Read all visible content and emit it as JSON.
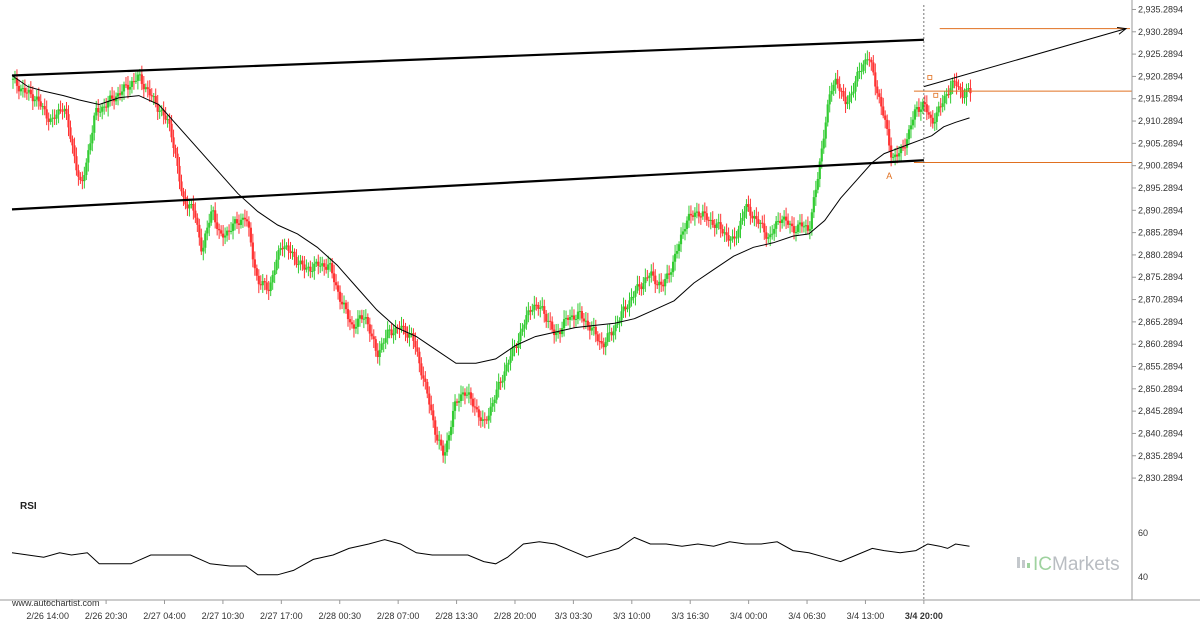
{
  "chart_data": {
    "type": "candlestick",
    "title": "",
    "ylim": [
      2828.2894,
      2936.2894
    ],
    "y_ticks": [
      "2,935.2894",
      "2,930.2894",
      "2,925.2894",
      "2,920.2894",
      "2,915.2894",
      "2,910.2894",
      "2,905.2894",
      "2,900.2894",
      "2,895.2894",
      "2,890.2894",
      "2,885.2894",
      "2,880.2894",
      "2,875.2894",
      "2,870.2894",
      "2,865.2894",
      "2,860.2894",
      "2,855.2894",
      "2,850.2894",
      "2,845.2894",
      "2,840.2894",
      "2,835.2894",
      "2,830.2894"
    ],
    "x_ticks": [
      "2/26 14:00",
      "2/26 20:30",
      "2/27 04:00",
      "2/27 10:30",
      "2/27 17:00",
      "2/28 00:30",
      "2/28 07:00",
      "2/28 13:30",
      "2/28 20:00",
      "3/3 03:30",
      "3/3 10:00",
      "3/3 16:30",
      "3/4 00:00",
      "3/4 06:30",
      "3/4 13:00",
      "3/4 20:00"
    ],
    "price_path": [
      [
        0,
        2919.5
      ],
      [
        6,
        2917
      ],
      [
        12,
        2915.5
      ],
      [
        20,
        2910
      ],
      [
        26,
        2914
      ],
      [
        35,
        2895
      ],
      [
        42,
        2912
      ],
      [
        50,
        2915
      ],
      [
        58,
        2918
      ],
      [
        64,
        2920.2
      ],
      [
        70,
        2916
      ],
      [
        80,
        2909
      ],
      [
        86,
        2893
      ],
      [
        92,
        2890
      ],
      [
        96,
        2881
      ],
      [
        101,
        2891
      ],
      [
        105,
        2884
      ],
      [
        112,
        2887
      ],
      [
        118,
        2889
      ],
      [
        124,
        2874
      ],
      [
        130,
        2873
      ],
      [
        136,
        2883
      ],
      [
        142,
        2880
      ],
      [
        148,
        2877
      ],
      [
        154,
        2878
      ],
      [
        160,
        2878
      ],
      [
        166,
        2870
      ],
      [
        172,
        2864
      ],
      [
        178,
        2867
      ],
      [
        184,
        2858
      ],
      [
        190,
        2863
      ],
      [
        196,
        2864
      ],
      [
        202,
        2862
      ],
      [
        208,
        2852
      ],
      [
        214,
        2840
      ],
      [
        218,
        2835
      ],
      [
        223,
        2846
      ],
      [
        228,
        2850
      ],
      [
        234,
        2846
      ],
      [
        238,
        2842
      ],
      [
        244,
        2849
      ],
      [
        250,
        2856
      ],
      [
        256,
        2862
      ],
      [
        262,
        2869
      ],
      [
        268,
        2868
      ],
      [
        274,
        2862
      ],
      [
        280,
        2866
      ],
      [
        286,
        2867
      ],
      [
        292,
        2864
      ],
      [
        298,
        2860
      ],
      [
        304,
        2864
      ],
      [
        310,
        2869
      ],
      [
        316,
        2873
      ],
      [
        322,
        2876
      ],
      [
        328,
        2873
      ],
      [
        334,
        2879
      ],
      [
        340,
        2888
      ],
      [
        346,
        2890
      ],
      [
        352,
        2888
      ],
      [
        358,
        2886
      ],
      [
        364,
        2883
      ],
      [
        370,
        2891
      ],
      [
        376,
        2888
      ],
      [
        382,
        2884
      ],
      [
        388,
        2889
      ],
      [
        394,
        2886
      ],
      [
        398,
        2887
      ],
      [
        402,
        2886
      ],
      [
        406,
        2896
      ],
      [
        410,
        2909
      ],
      [
        413,
        2917
      ],
      [
        416,
        2920
      ],
      [
        420,
        2914
      ],
      [
        424,
        2917
      ],
      [
        428,
        2922
      ],
      [
        432,
        2925
      ],
      [
        436,
        2918
      ],
      [
        440,
        2911
      ],
      [
        444,
        2902
      ],
      [
        448,
        2903
      ],
      [
        452,
        2907
      ],
      [
        456,
        2913
      ],
      [
        460,
        2914
      ],
      [
        464,
        2910
      ],
      [
        468,
        2913
      ],
      [
        472,
        2917
      ],
      [
        476,
        2919
      ],
      [
        480,
        2916
      ],
      [
        483,
        2917
      ]
    ],
    "ma_path": [
      [
        0,
        2920.5
      ],
      [
        8,
        2918
      ],
      [
        16,
        2917
      ],
      [
        26,
        2916
      ],
      [
        34,
        2915
      ],
      [
        44,
        2914
      ],
      [
        54,
        2915.5
      ],
      [
        64,
        2916
      ],
      [
        74,
        2914
      ],
      [
        84,
        2909
      ],
      [
        94,
        2904
      ],
      [
        104,
        2899
      ],
      [
        114,
        2894
      ],
      [
        124,
        2890
      ],
      [
        134,
        2887
      ],
      [
        144,
        2885
      ],
      [
        154,
        2882
      ],
      [
        164,
        2878
      ],
      [
        174,
        2873
      ],
      [
        184,
        2868
      ],
      [
        194,
        2864
      ],
      [
        204,
        2862
      ],
      [
        214,
        2859
      ],
      [
        224,
        2856
      ],
      [
        234,
        2856
      ],
      [
        244,
        2857
      ],
      [
        254,
        2860
      ],
      [
        264,
        2862
      ],
      [
        274,
        2863
      ],
      [
        284,
        2864
      ],
      [
        294,
        2864.5
      ],
      [
        304,
        2865
      ],
      [
        314,
        2866
      ],
      [
        324,
        2868
      ],
      [
        334,
        2870
      ],
      [
        344,
        2874
      ],
      [
        354,
        2877
      ],
      [
        364,
        2880
      ],
      [
        374,
        2882
      ],
      [
        384,
        2883
      ],
      [
        394,
        2884.5
      ],
      [
        402,
        2885
      ],
      [
        410,
        2888
      ],
      [
        418,
        2893
      ],
      [
        426,
        2897
      ],
      [
        434,
        2901
      ],
      [
        440,
        2903
      ],
      [
        446,
        2904
      ],
      [
        452,
        2905
      ],
      [
        458,
        2906
      ],
      [
        464,
        2907
      ],
      [
        470,
        2909
      ],
      [
        476,
        2910
      ],
      [
        483,
        2911
      ]
    ],
    "rsi_ylim": [
      35,
      65
    ],
    "rsi_ticks": [
      "60",
      "40"
    ],
    "rsi_path": [
      [
        0,
        51
      ],
      [
        8,
        50
      ],
      [
        16,
        49
      ],
      [
        24,
        51
      ],
      [
        30,
        50
      ],
      [
        38,
        51
      ],
      [
        44,
        46
      ],
      [
        50,
        46
      ],
      [
        60,
        46
      ],
      [
        70,
        50
      ],
      [
        80,
        50
      ],
      [
        90,
        50
      ],
      [
        100,
        46
      ],
      [
        110,
        45
      ],
      [
        118,
        45
      ],
      [
        124,
        41
      ],
      [
        134,
        41
      ],
      [
        142,
        43
      ],
      [
        152,
        48
      ],
      [
        162,
        50
      ],
      [
        170,
        53
      ],
      [
        180,
        55
      ],
      [
        188,
        57
      ],
      [
        196,
        55
      ],
      [
        204,
        51
      ],
      [
        212,
        50
      ],
      [
        222,
        50
      ],
      [
        230,
        50
      ],
      [
        238,
        47
      ],
      [
        244,
        46
      ],
      [
        250,
        49
      ],
      [
        258,
        55
      ],
      [
        266,
        56
      ],
      [
        274,
        55
      ],
      [
        282,
        52
      ],
      [
        290,
        49
      ],
      [
        298,
        51
      ],
      [
        306,
        53
      ],
      [
        314,
        58
      ],
      [
        322,
        55
      ],
      [
        330,
        55
      ],
      [
        338,
        54
      ],
      [
        346,
        55
      ],
      [
        354,
        54
      ],
      [
        362,
        56
      ],
      [
        370,
        55
      ],
      [
        378,
        55
      ],
      [
        386,
        56
      ],
      [
        394,
        52
      ],
      [
        402,
        51
      ],
      [
        410,
        49
      ],
      [
        418,
        47
      ],
      [
        426,
        50
      ],
      [
        434,
        53
      ],
      [
        440,
        52
      ],
      [
        448,
        51
      ],
      [
        456,
        52
      ],
      [
        462,
        55
      ],
      [
        468,
        54
      ],
      [
        472,
        53
      ],
      [
        476,
        55
      ],
      [
        483,
        54
      ]
    ],
    "channel": {
      "upper": {
        "from": [
          0,
          2920.5
        ],
        "to": [
          460,
          2928.5
        ]
      },
      "lower": {
        "from": [
          0,
          2890.5
        ],
        "to": [
          460,
          2901.5
        ]
      }
    },
    "projection": {
      "from": [
        460,
        2918
      ],
      "to": [
        565,
        2931
      ]
    },
    "levels": [
      {
        "value": 2931,
        "color": "#e07020"
      },
      {
        "value": 2917,
        "color": "#e07020"
      },
      {
        "value": 2901,
        "color": "#e07020"
      }
    ],
    "point_label": "A",
    "point_label_value": 2898,
    "xlim": [
      0,
      565
    ],
    "rsi_label": "RSI",
    "colors": {
      "up": "#33cc33",
      "down": "#ff3333",
      "line": "#000000",
      "level": "#e07020",
      "ma": "#000000"
    }
  },
  "watermark": "www.autochartist.com",
  "brand": {
    "prefix": "IC",
    "suffix": "Markets"
  }
}
